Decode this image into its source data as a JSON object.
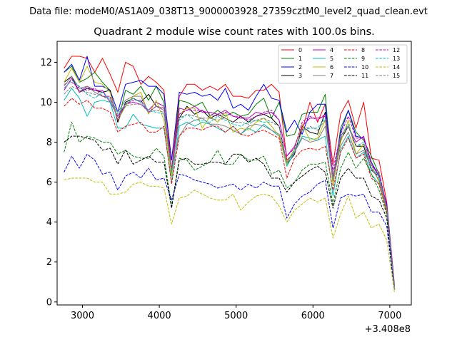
{
  "figure": {
    "suptitle": "Data file: modeM0/AS1A09_038T13_9000003928_27359cztM0_level2_quad_clean.evt",
    "title": "Quadrant 2 module wise count rates with 100.0s bins."
  },
  "chart_data": {
    "type": "line",
    "title": "Quadrant 2 module wise count rates with 100.0s bins.",
    "xlabel": "",
    "ylabel": "",
    "x_offset_label": "+3.408e8",
    "xlim": [
      2670,
      7280
    ],
    "ylim": [
      -0.15,
      13.05
    ],
    "xticks": [
      3000,
      4000,
      5000,
      6000,
      7000
    ],
    "xtick_labels": [
      "3000",
      "4000",
      "5000",
      "6000",
      "7000"
    ],
    "yticks": [
      0,
      2,
      4,
      6,
      8,
      10,
      12
    ],
    "ytick_labels": [
      "0",
      "2",
      "4",
      "6",
      "8",
      "10",
      "12"
    ],
    "grid": false,
    "legend_position": "top-right",
    "legend_columns": 4,
    "x": [
      2760,
      2860,
      2960,
      3060,
      3160,
      3260,
      3360,
      3460,
      3560,
      3660,
      3760,
      3860,
      3960,
      4060,
      4160,
      4260,
      4360,
      4460,
      4560,
      4660,
      4760,
      4860,
      4960,
      5060,
      5160,
      5260,
      5360,
      5460,
      5560,
      5660,
      5760,
      5860,
      5960,
      6060,
      6160,
      6260,
      6360,
      6460,
      6560,
      6660,
      6760,
      6860,
      6960,
      7060
    ],
    "series": [
      {
        "name": "0",
        "color": "#ff0000",
        "dash": "solid",
        "values": [
          11.7,
          12.3,
          12.3,
          12.2,
          11.5,
          12.2,
          11.4,
          10.5,
          12.0,
          11.8,
          10.9,
          11.3,
          11.0,
          10.6,
          6.6,
          10.3,
          10.9,
          10.9,
          10.6,
          10.8,
          10.6,
          10.9,
          10.3,
          10.3,
          10.2,
          10.6,
          10.6,
          10.9,
          10.5,
          7.1,
          7.5,
          8.6,
          10.0,
          9.0,
          9.9,
          6.9,
          9.4,
          10.1,
          8.7,
          10.0,
          7.2,
          7.1,
          5.0,
          0.9
        ]
      },
      {
        "name": "1",
        "color": "#008000",
        "dash": "solid",
        "values": [
          11.5,
          11.8,
          11.0,
          11.2,
          11.5,
          11.0,
          10.6,
          9.0,
          10.6,
          10.4,
          10.8,
          10.1,
          10.8,
          10.0,
          6.3,
          10.1,
          10.0,
          9.8,
          10.0,
          9.3,
          9.6,
          9.3,
          9.5,
          9.3,
          9.4,
          9.9,
          10.2,
          9.2,
          10.0,
          8.3,
          8.4,
          9.4,
          9.5,
          9.5,
          10.4,
          5.9,
          8.7,
          9.6,
          8.5,
          8.1,
          7.3,
          6.4,
          4.8,
          0.8
        ]
      },
      {
        "name": "2",
        "color": "#0000ff",
        "dash": "solid",
        "values": [
          11.5,
          11.9,
          11.1,
          12.3,
          10.8,
          10.8,
          10.6,
          9.5,
          10.9,
          11.0,
          11.1,
          10.8,
          10.8,
          10.4,
          7.1,
          10.5,
          10.4,
          10.5,
          10.3,
          10.4,
          10.1,
          10.7,
          9.7,
          9.9,
          9.6,
          10.3,
          10.9,
          10.2,
          10.1,
          8.5,
          9.1,
          8.4,
          9.5,
          9.9,
          9.9,
          6.2,
          8.5,
          9.6,
          8.3,
          8.2,
          7.0,
          6.3,
          4.9,
          0.8
        ]
      },
      {
        "name": "3",
        "color": "#000000",
        "dash": "solid",
        "values": [
          11.0,
          11.3,
          10.5,
          10.7,
          10.6,
          10.5,
          10.6,
          9.0,
          10.0,
          10.2,
          10.0,
          10.4,
          9.8,
          9.7,
          6.6,
          9.2,
          9.8,
          9.4,
          9.6,
          9.2,
          9.4,
          9.2,
          9.0,
          9.3,
          9.0,
          9.3,
          9.4,
          9.2,
          8.8,
          6.9,
          7.4,
          8.8,
          8.5,
          8.4,
          9.5,
          5.9,
          8.1,
          8.8,
          7.8,
          7.8,
          6.6,
          6.3,
          4.7,
          0.7
        ]
      },
      {
        "name": "4",
        "color": "#bf00bf",
        "dash": "solid",
        "values": [
          10.6,
          11.2,
          10.5,
          10.8,
          10.6,
          10.6,
          10.0,
          9.3,
          9.9,
          10.0,
          9.9,
          9.6,
          10.0,
          9.8,
          6.5,
          9.7,
          9.6,
          9.8,
          9.5,
          9.5,
          9.4,
          9.6,
          9.3,
          9.2,
          9.2,
          9.5,
          9.4,
          9.5,
          9.1,
          7.3,
          7.8,
          8.8,
          9.2,
          9.2,
          9.3,
          6.3,
          8.3,
          8.8,
          8.0,
          8.3,
          6.9,
          6.3,
          4.8,
          0.8
        ]
      },
      {
        "name": "5",
        "color": "#00bfbf",
        "dash": "solid",
        "values": [
          10.1,
          10.7,
          10.2,
          9.3,
          10.0,
          10.1,
          10.0,
          8.7,
          8.7,
          9.4,
          8.9,
          8.8,
          8.7,
          8.7,
          6.0,
          8.8,
          9.0,
          8.8,
          9.0,
          8.9,
          8.7,
          8.5,
          8.8,
          8.4,
          8.7,
          8.5,
          8.9,
          8.6,
          8.3,
          6.8,
          7.5,
          8.3,
          8.2,
          8.1,
          8.3,
          5.3,
          7.6,
          8.3,
          7.2,
          7.5,
          6.4,
          5.9,
          4.5,
          0.7
        ]
      },
      {
        "name": "6",
        "color": "#bfbf00",
        "dash": "solid",
        "values": [
          11.0,
          11.7,
          11.0,
          11.8,
          11.0,
          10.9,
          10.5,
          9.1,
          9.8,
          10.3,
          10.5,
          9.4,
          10.1,
          9.1,
          6.3,
          9.4,
          9.7,
          9.7,
          8.7,
          9.3,
          9.0,
          9.5,
          8.5,
          8.7,
          8.6,
          9.0,
          9.2,
          8.8,
          8.3,
          6.9,
          7.7,
          8.9,
          8.1,
          8.2,
          9.1,
          5.9,
          8.0,
          9.1,
          7.4,
          7.9,
          6.9,
          6.0,
          4.5,
          0.7
        ]
      },
      {
        "name": "7",
        "color": "#808080",
        "dash": "solid",
        "values": [
          10.8,
          11.3,
          10.7,
          10.8,
          10.5,
          10.3,
          10.2,
          9.5,
          10.1,
          10.3,
          10.3,
          9.5,
          9.8,
          9.7,
          6.6,
          8.3,
          8.9,
          9.1,
          9.2,
          8.9,
          8.9,
          8.8,
          8.6,
          8.4,
          8.8,
          8.9,
          8.8,
          8.6,
          8.4,
          7.0,
          7.5,
          8.2,
          8.0,
          8.1,
          8.8,
          6.1,
          7.8,
          8.5,
          7.4,
          7.6,
          6.7,
          6.1,
          4.6,
          0.7
        ]
      },
      {
        "name": "8",
        "color": "#ff0000",
        "dash": "dashed",
        "values": [
          9.8,
          10.2,
          9.9,
          10.1,
          9.7,
          9.7,
          9.5,
          8.5,
          8.8,
          8.9,
          9.0,
          8.5,
          8.5,
          8.8,
          5.9,
          8.3,
          8.7,
          8.7,
          8.6,
          8.8,
          8.8,
          8.5,
          8.8,
          8.4,
          8.3,
          8.5,
          8.6,
          8.4,
          8.2,
          6.2,
          7.2,
          7.6,
          7.7,
          7.6,
          7.8,
          5.6,
          7.5,
          8.2,
          7.2,
          7.4,
          6.2,
          5.9,
          4.5,
          0.6
        ]
      },
      {
        "name": "9",
        "color": "#008000",
        "dash": "dashed",
        "values": [
          7.5,
          9.0,
          8.0,
          8.3,
          8.2,
          8.0,
          8.0,
          7.4,
          7.6,
          7.3,
          7.2,
          7.2,
          7.7,
          7.3,
          4.8,
          7.2,
          7.1,
          6.6,
          6.8,
          7.0,
          7.6,
          6.9,
          6.9,
          7.4,
          7.1,
          7.1,
          7.3,
          6.4,
          6.6,
          5.7,
          6.0,
          6.6,
          6.9,
          6.9,
          7.0,
          4.9,
          6.7,
          7.5,
          6.7,
          7.2,
          6.4,
          5.6,
          4.4,
          0.6
        ]
      },
      {
        "name": "10",
        "color": "#0000ff",
        "dash": "dashed",
        "values": [
          6.5,
          7.3,
          6.7,
          7.4,
          7.1,
          6.4,
          6.5,
          5.6,
          6.3,
          6.5,
          6.2,
          6.7,
          6.1,
          6.2,
          5.1,
          6.4,
          6.3,
          6.1,
          6.0,
          5.9,
          5.7,
          5.8,
          5.9,
          5.6,
          5.9,
          5.7,
          6.0,
          5.8,
          5.8,
          4.2,
          4.9,
          5.3,
          5.5,
          5.9,
          6.1,
          3.7,
          5.2,
          5.4,
          5.3,
          5.4,
          4.5,
          4.5,
          3.8,
          0.6
        ]
      },
      {
        "name": "11",
        "color": "#000000",
        "dash": "dashed",
        "values": [
          8.0,
          8.3,
          8.3,
          8.2,
          8.1,
          7.6,
          7.7,
          6.9,
          7.6,
          6.9,
          7.1,
          7.3,
          7.0,
          7.0,
          4.7,
          7.1,
          7.2,
          6.9,
          6.9,
          7.0,
          7.0,
          6.9,
          7.4,
          7.4,
          7.0,
          7.2,
          6.9,
          6.2,
          6.2,
          5.5,
          6.0,
          6.3,
          6.6,
          6.8,
          6.5,
          4.7,
          6.2,
          6.7,
          6.2,
          6.2,
          5.3,
          5.1,
          4.2,
          0.6
        ]
      },
      {
        "name": "12",
        "color": "#bf00bf",
        "dash": "dashed",
        "values": [
          10.9,
          11.0,
          10.7,
          10.6,
          10.7,
          10.3,
          10.3,
          9.1,
          9.9,
          10.1,
          10.1,
          9.5,
          9.8,
          9.6,
          6.6,
          9.4,
          9.6,
          9.6,
          9.6,
          9.4,
          9.3,
          9.5,
          9.3,
          9.3,
          9.1,
          9.3,
          9.5,
          9.6,
          9.1,
          7.3,
          7.7,
          9.0,
          9.3,
          9.1,
          9.4,
          6.6,
          8.4,
          9.3,
          8.2,
          8.2,
          6.8,
          6.5,
          4.8,
          0.8
        ]
      },
      {
        "name": "13",
        "color": "#00bfbf",
        "dash": "dashed",
        "values": [
          10.7,
          11.1,
          10.8,
          10.4,
          10.2,
          10.5,
          10.1,
          9.4,
          9.9,
          10.2,
          10.0,
          9.6,
          9.5,
          9.4,
          6.5,
          9.1,
          9.4,
          9.1,
          9.1,
          9.0,
          9.3,
          9.1,
          8.9,
          8.8,
          9.0,
          9.1,
          9.0,
          9.0,
          8.8,
          7.0,
          7.6,
          8.6,
          8.7,
          8.7,
          9.2,
          6.2,
          8.3,
          8.9,
          7.8,
          8.0,
          6.7,
          6.3,
          4.7,
          0.7
        ]
      },
      {
        "name": "14",
        "color": "#bfbf00",
        "dash": "dashed",
        "values": [
          6.1,
          6.2,
          6.2,
          6.2,
          6.0,
          6.0,
          5.4,
          5.4,
          5.5,
          5.9,
          6.0,
          5.8,
          5.8,
          5.7,
          3.9,
          5.2,
          5.3,
          5.6,
          5.4,
          5.2,
          5.1,
          5.1,
          5.4,
          4.6,
          5.0,
          5.3,
          5.4,
          5.3,
          4.8,
          4.0,
          4.6,
          4.9,
          5.2,
          5.0,
          5.2,
          3.2,
          4.4,
          5.3,
          4.2,
          4.5,
          3.7,
          3.9,
          3.1,
          0.5
        ]
      },
      {
        "name": "15",
        "color": "#808080",
        "dash": "dashed",
        "values": [
          10.4,
          10.8,
          10.6,
          10.5,
          10.4,
          10.3,
          10.1,
          9.2,
          9.8,
          9.9,
          9.9,
          9.5,
          9.6,
          9.5,
          6.5,
          9.2,
          9.4,
          9.3,
          9.2,
          9.2,
          9.1,
          9.2,
          9.0,
          9.0,
          8.9,
          9.1,
          9.2,
          9.0,
          8.8,
          7.0,
          7.5,
          8.6,
          8.8,
          8.6,
          9.1,
          6.2,
          8.2,
          8.8,
          7.8,
          7.9,
          6.6,
          6.2,
          4.7,
          0.7
        ]
      }
    ]
  }
}
